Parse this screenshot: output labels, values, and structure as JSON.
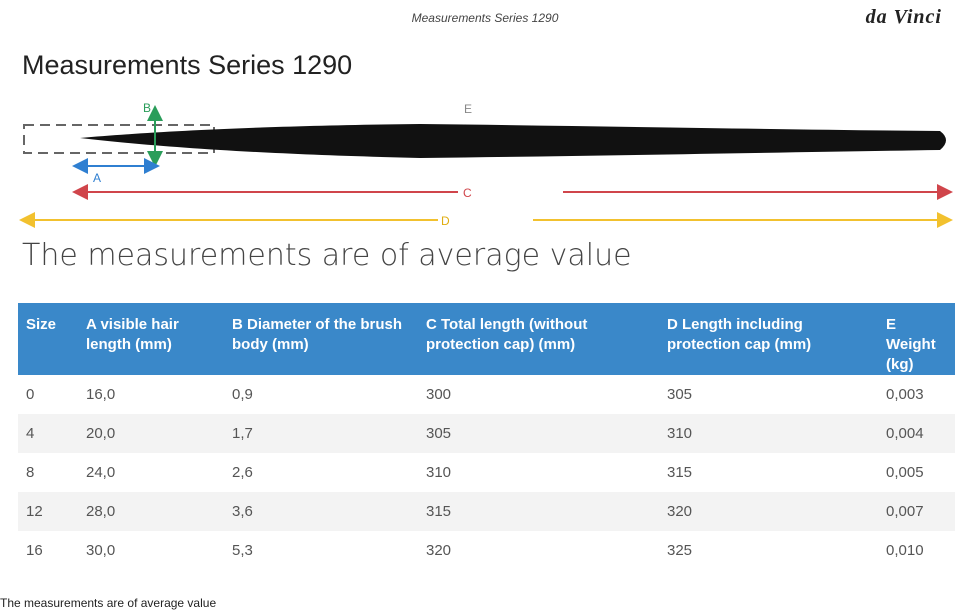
{
  "header": {
    "caption": "Measurements Series 1290",
    "brand": "da Vinci"
  },
  "title": "Measurements Series 1290",
  "diagram": {
    "labels": {
      "a": "A",
      "b": "B",
      "c": "C",
      "d": "D",
      "e": "E"
    }
  },
  "subtitle": "The measurements are of average value",
  "table": {
    "headers": [
      "Size",
      "A visible hair length (mm)",
      "B Diameter of the brush body (mm)",
      "C Total length (without protection cap) (mm)",
      "D Length including protection cap (mm)",
      "E Weight (kg)"
    ],
    "rows": [
      [
        "0",
        "16,0",
        "0,9",
        "300",
        "305",
        "0,003"
      ],
      [
        "4",
        "20,0",
        "1,7",
        "305",
        "310",
        "0,004"
      ],
      [
        "8",
        "24,0",
        "2,6",
        "310",
        "315",
        "0,005"
      ],
      [
        "12",
        "28,0",
        "3,6",
        "315",
        "320",
        "0,007"
      ],
      [
        "16",
        "30,0",
        "5,3",
        "320",
        "325",
        "0,010"
      ]
    ]
  },
  "footer": "The measurements are of average value"
}
